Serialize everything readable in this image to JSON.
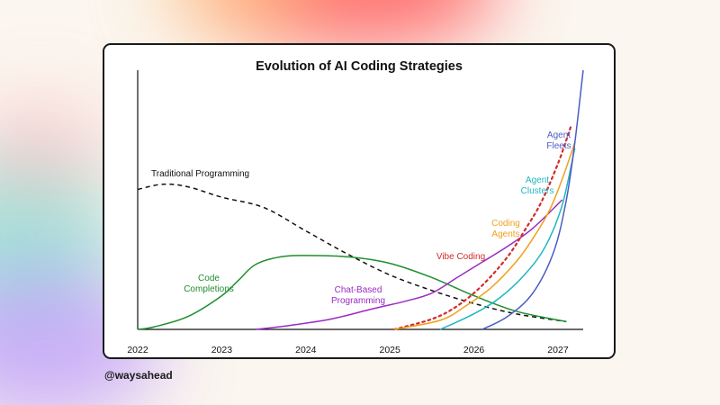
{
  "handle": "@waysahead",
  "chart_data": {
    "type": "line",
    "title": "Evolution of AI Coding Strategies",
    "xlabel": "",
    "ylabel": "",
    "x_ticks": [
      "2022",
      "2023",
      "2024",
      "2025",
      "2026",
      "2027"
    ],
    "xlim": [
      2022,
      2027.3
    ],
    "grid": false,
    "legend": "labels placed next to each curve",
    "series": [
      {
        "name": "Traditional Programming",
        "color": "#111111",
        "style": "dashed",
        "x": [
          2022,
          2022.3,
          2022.6,
          2023,
          2023.5,
          2024,
          2024.5,
          2025,
          2025.5,
          2026,
          2026.5,
          2027.1
        ],
        "y": [
          0.54,
          0.56,
          0.55,
          0.51,
          0.47,
          0.38,
          0.29,
          0.21,
          0.15,
          0.1,
          0.06,
          0.03
        ]
      },
      {
        "name": "Code Completions",
        "color": "#1e8e2e",
        "style": "solid",
        "x": [
          2022,
          2022.2,
          2022.6,
          2023,
          2023.2,
          2023.4,
          2023.7,
          2024,
          2024.5,
          2025,
          2025.5,
          2026,
          2026.5,
          2027.1
        ],
        "y": [
          0,
          0.01,
          0.05,
          0.13,
          0.19,
          0.25,
          0.28,
          0.285,
          0.28,
          0.255,
          0.2,
          0.13,
          0.07,
          0.03
        ]
      },
      {
        "name": "Chat-Based Programming",
        "color": "#9a2bc2",
        "style": "solid",
        "x": [
          2023.4,
          2023.8,
          2024.3,
          2024.8,
          2025.2,
          2025.5,
          2025.8,
          2026.1,
          2026.4,
          2026.7,
          2027.05
        ],
        "y": [
          0,
          0.015,
          0.04,
          0.08,
          0.11,
          0.14,
          0.2,
          0.26,
          0.32,
          0.39,
          0.5
        ]
      },
      {
        "name": "Vibe Coding",
        "color": "#d42a2a",
        "style": "dotted",
        "x": [
          2025.05,
          2025.5,
          2025.8,
          2026.1,
          2026.4,
          2026.6,
          2026.8,
          2027,
          2027.15
        ],
        "y": [
          0,
          0.04,
          0.09,
          0.17,
          0.28,
          0.38,
          0.49,
          0.64,
          0.78
        ]
      },
      {
        "name": "Coding Agents",
        "color": "#f0a01c",
        "style": "solid",
        "x": [
          2025.05,
          2025.6,
          2025.9,
          2026.2,
          2026.5,
          2026.7,
          2026.9,
          2027.05,
          2027.2
        ],
        "y": [
          0,
          0.035,
          0.09,
          0.16,
          0.26,
          0.35,
          0.46,
          0.58,
          0.72
        ]
      },
      {
        "name": "Agent Clusters",
        "color": "#1fb6c0",
        "style": "solid",
        "x": [
          2025.6,
          2026,
          2026.3,
          2026.6,
          2026.85,
          2027.05,
          2027.2
        ],
        "y": [
          0,
          0.06,
          0.12,
          0.21,
          0.32,
          0.48,
          0.7
        ]
      },
      {
        "name": "Agent Fleets",
        "color": "#4b5cc4",
        "style": "solid",
        "x": [
          2026.1,
          2026.4,
          2026.7,
          2026.95,
          2027.1,
          2027.2,
          2027.3
        ],
        "y": [
          0,
          0.05,
          0.14,
          0.3,
          0.5,
          0.72,
          1.0
        ]
      }
    ],
    "annotations": [
      {
        "text": "Traditional Programming",
        "series": 0
      },
      {
        "text": "Code\nCompletions",
        "series": 1
      },
      {
        "text": "Chat-Based\nProgramming",
        "series": 2
      },
      {
        "text": "Vibe Coding",
        "series": 3
      },
      {
        "text": "Coding\nAgents",
        "series": 4
      },
      {
        "text": "Agent\nClusters",
        "series": 5
      },
      {
        "text": "Agent\nFleets",
        "series": 6
      }
    ]
  }
}
